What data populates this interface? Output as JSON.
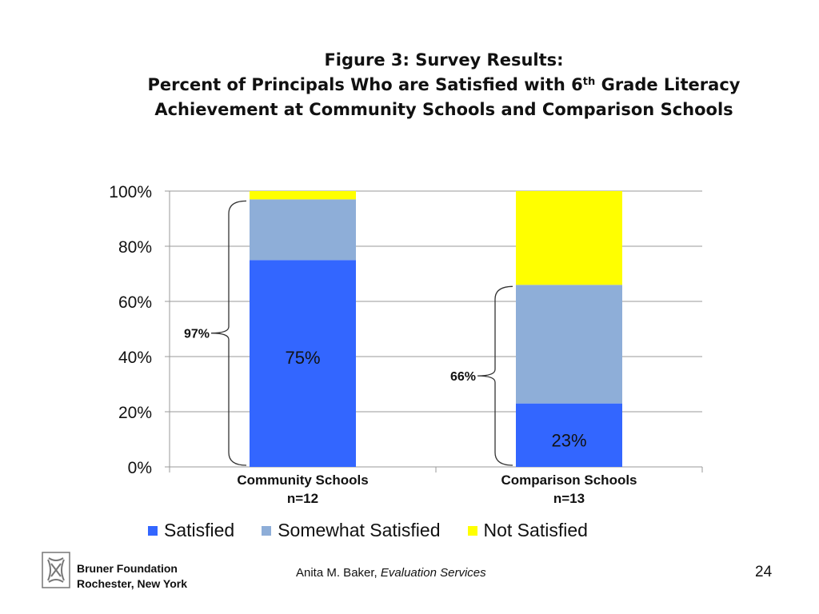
{
  "title": {
    "line1": "Figure 3: Survey Results:",
    "line2_pre": "Percent of Principals Who are Satisfied with 6",
    "line2_sup": "th",
    "line2_post": " Grade Literacy",
    "line3": "Achievement at Community Schools and Comparison Schools"
  },
  "chart_data": {
    "type": "bar",
    "stacked": true,
    "categories": [
      "Community Schools",
      "Comparison Schools"
    ],
    "category_sublabels": [
      "n=12",
      "n=13"
    ],
    "series": [
      {
        "name": "Satisfied",
        "color": "#3366ff",
        "values": [
          75,
          23
        ]
      },
      {
        "name": "Somewhat Satisfied",
        "color": "#8eaed8",
        "values": [
          22,
          43
        ]
      },
      {
        "name": "Not Satisfied",
        "color": "#ffff00",
        "values": [
          3,
          34
        ]
      }
    ],
    "data_labels": [
      {
        "category": 0,
        "series": 0,
        "text": "75%"
      },
      {
        "category": 1,
        "series": 0,
        "text": "23%"
      }
    ],
    "brace_annotations": [
      {
        "category": 0,
        "from": 0,
        "to": 97,
        "text": "97%"
      },
      {
        "category": 1,
        "from": 0,
        "to": 66,
        "text": "66%"
      }
    ],
    "yticks": [
      "0%",
      "20%",
      "40%",
      "60%",
      "80%",
      "100%"
    ],
    "ylim": [
      0,
      100
    ],
    "ylabel": "",
    "xlabel": "",
    "grid": true,
    "legend_position": "bottom"
  },
  "footer": {
    "org_line1": "Bruner Foundation",
    "org_line2": "Rochester, New York",
    "author_name": "Anita M. Baker, ",
    "author_org": "Evaluation Services",
    "page_number": "24",
    "logo_icon": "bruner-knot-logo-icon"
  }
}
